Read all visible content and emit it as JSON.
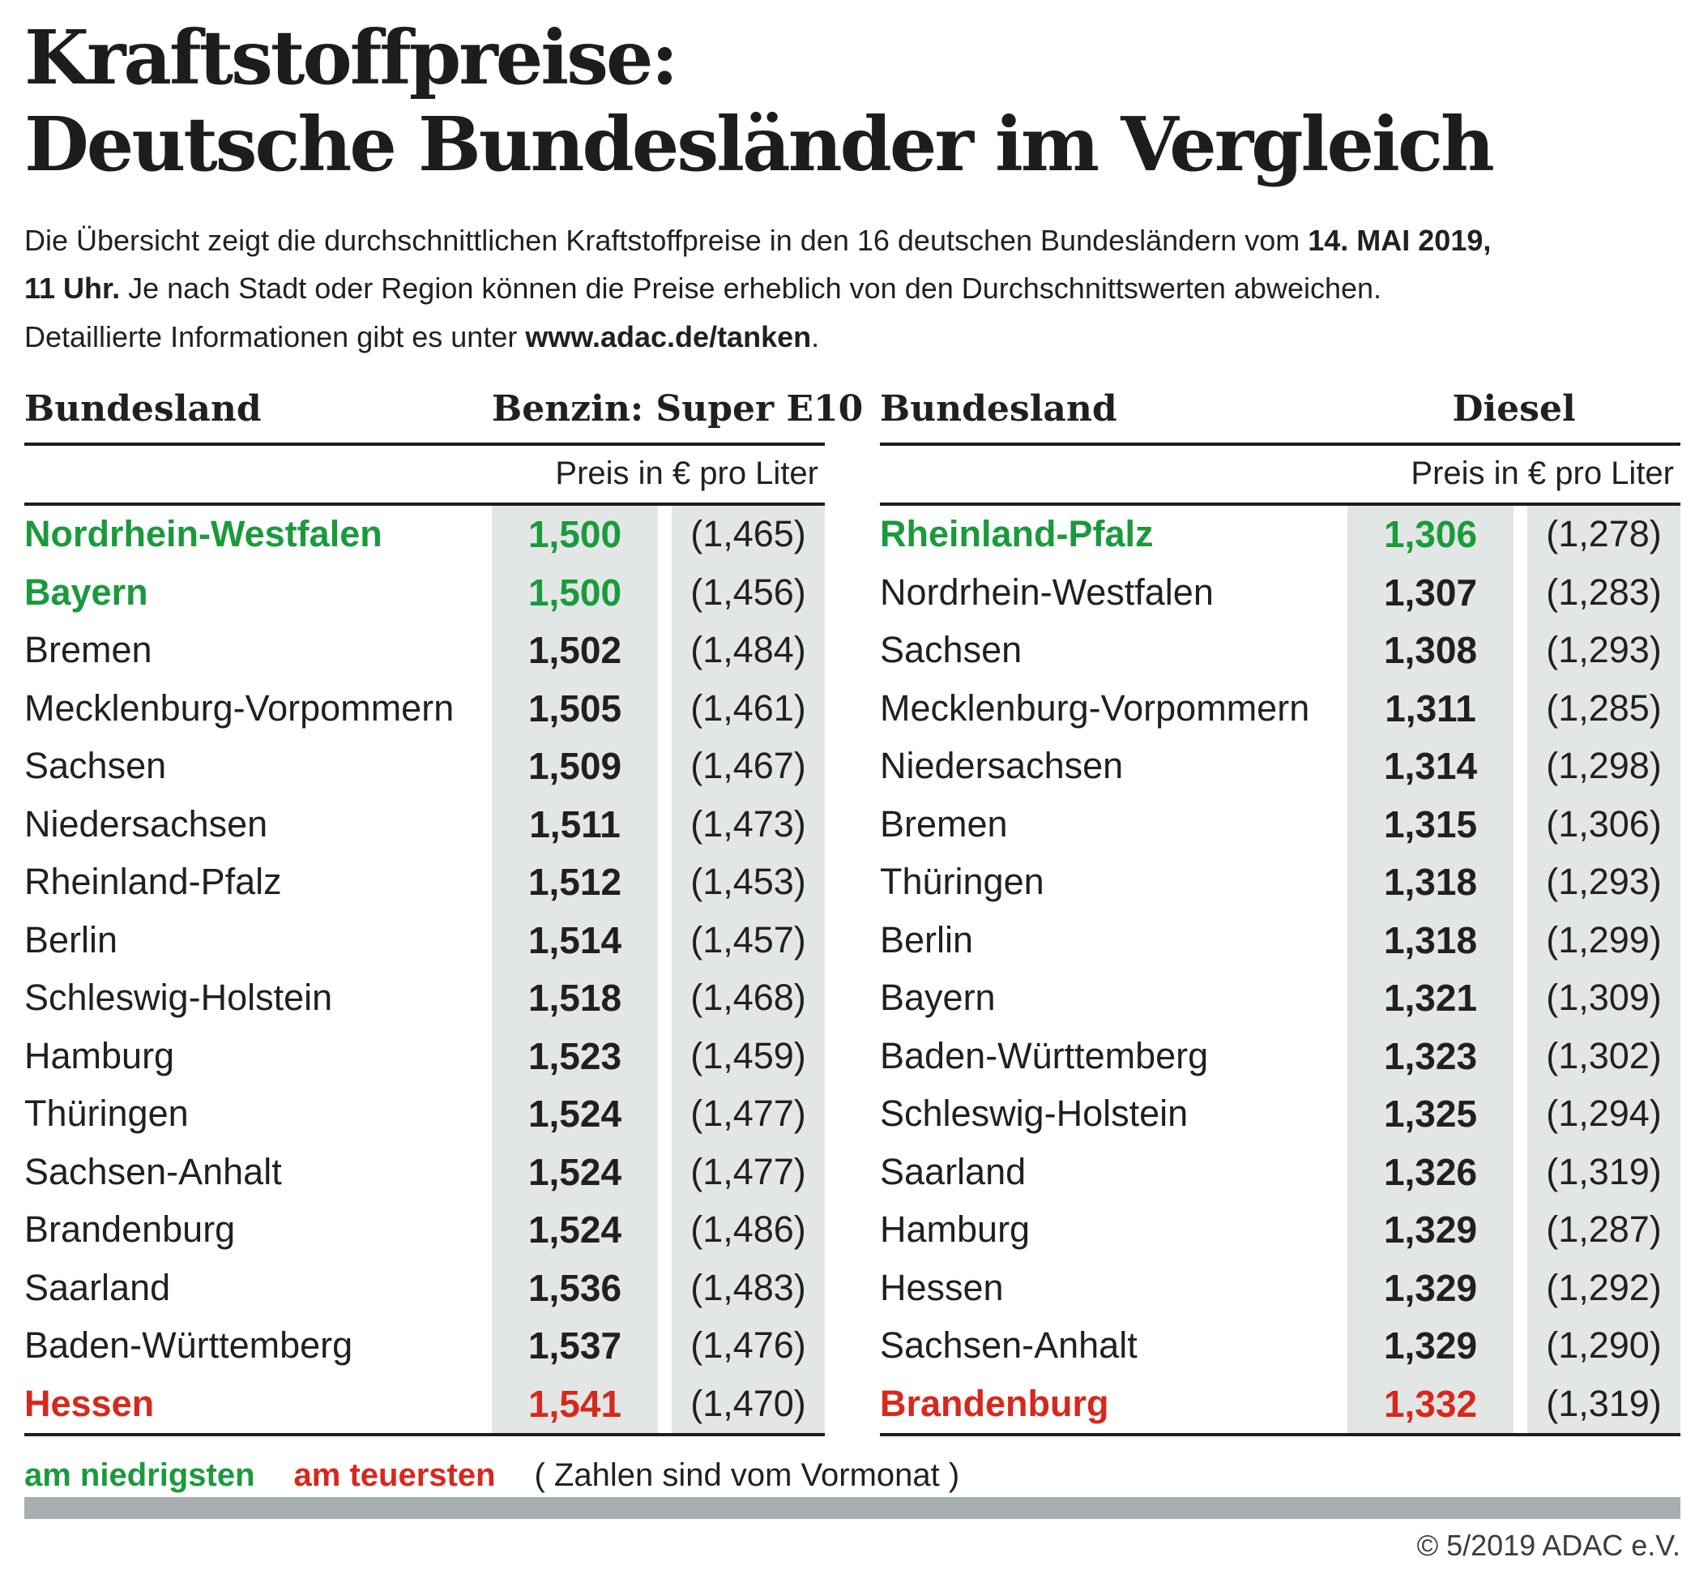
{
  "title": {
    "line1": "Kraftstoffpreise:",
    "line2": "Deutsche Bundesländer im Vergleich"
  },
  "intro": {
    "l1a": "Die Übersicht zeigt die durchschnittlichen Kraftstoffpreise in den 16 deutschen Bundesländern vom ",
    "l1b": "14. MAI 2019,",
    "l2a": "11 Uhr.",
    "l2b": " Je nach Stadt oder Region können die Preise erheblich von den Durchschnittswerten abweichen.",
    "l3a": "Detaillierte Informationen gibt es unter ",
    "l3b": "www.adac.de/tanken",
    "l3c": "."
  },
  "legend": {
    "lowest": "am niedrigsten",
    "highest": "am teuersten",
    "note": "( Zahlen sind vom Vormonat )"
  },
  "copyright": "© 5/2019 ADAC e.V.",
  "colors": {
    "green": "#1a9a3d",
    "red": "#d7281c",
    "band": "#e2e6e5",
    "bar": "#a8adb0"
  },
  "chart_data": [
    {
      "type": "table",
      "title": "Benzin: Super E10",
      "unit": "Preis in € pro Liter",
      "as_of": "14. MAI 2019, 11 Uhr",
      "columns": [
        "Bundesland",
        "Preis in € pro Liter",
        "Vormonat"
      ],
      "rows": [
        {
          "name": "Nordrhein-Westfalen",
          "value": "1,500",
          "prev": "(1,465)",
          "highlight": "lowest"
        },
        {
          "name": "Bayern",
          "value": "1,500",
          "prev": "(1,456)",
          "highlight": "lowest"
        },
        {
          "name": "Bremen",
          "value": "1,502",
          "prev": "(1,484)",
          "highlight": ""
        },
        {
          "name": "Mecklenburg-Vorpommern",
          "value": "1,505",
          "prev": "(1,461)",
          "highlight": ""
        },
        {
          "name": "Sachsen",
          "value": "1,509",
          "prev": "(1,467)",
          "highlight": ""
        },
        {
          "name": "Niedersachsen",
          "value": "1,511",
          "prev": "(1,473)",
          "highlight": ""
        },
        {
          "name": "Rheinland-Pfalz",
          "value": "1,512",
          "prev": "(1,453)",
          "highlight": ""
        },
        {
          "name": "Berlin",
          "value": "1,514",
          "prev": "(1,457)",
          "highlight": ""
        },
        {
          "name": "Schleswig-Holstein",
          "value": "1,518",
          "prev": "(1,468)",
          "highlight": ""
        },
        {
          "name": "Hamburg",
          "value": "1,523",
          "prev": "(1,459)",
          "highlight": ""
        },
        {
          "name": "Thüringen",
          "value": "1,524",
          "prev": "(1,477)",
          "highlight": ""
        },
        {
          "name": "Sachsen-Anhalt",
          "value": "1,524",
          "prev": "(1,477)",
          "highlight": ""
        },
        {
          "name": "Brandenburg",
          "value": "1,524",
          "prev": "(1,486)",
          "highlight": ""
        },
        {
          "name": "Saarland",
          "value": "1,536",
          "prev": "(1,483)",
          "highlight": ""
        },
        {
          "name": "Baden-Württemberg",
          "value": "1,537",
          "prev": "(1,476)",
          "highlight": ""
        },
        {
          "name": "Hessen",
          "value": "1,541",
          "prev": "(1,470)",
          "highlight": "highest"
        }
      ]
    },
    {
      "type": "table",
      "title": "Diesel",
      "unit": "Preis in € pro Liter",
      "as_of": "14. MAI 2019, 11 Uhr",
      "columns": [
        "Bundesland",
        "Preis in € pro Liter",
        "Vormonat"
      ],
      "rows": [
        {
          "name": "Rheinland-Pfalz",
          "value": "1,306",
          "prev": "(1,278)",
          "highlight": "lowest"
        },
        {
          "name": "Nordrhein-Westfalen",
          "value": "1,307",
          "prev": "(1,283)",
          "highlight": ""
        },
        {
          "name": "Sachsen",
          "value": "1,308",
          "prev": "(1,293)",
          "highlight": ""
        },
        {
          "name": "Mecklenburg-Vorpommern",
          "value": "1,311",
          "prev": "(1,285)",
          "highlight": ""
        },
        {
          "name": "Niedersachsen",
          "value": "1,314",
          "prev": "(1,298)",
          "highlight": ""
        },
        {
          "name": "Bremen",
          "value": "1,315",
          "prev": "(1,306)",
          "highlight": ""
        },
        {
          "name": "Thüringen",
          "value": "1,318",
          "prev": "(1,293)",
          "highlight": ""
        },
        {
          "name": "Berlin",
          "value": "1,318",
          "prev": "(1,299)",
          "highlight": ""
        },
        {
          "name": "Bayern",
          "value": "1,321",
          "prev": "(1,309)",
          "highlight": ""
        },
        {
          "name": "Baden-Württemberg",
          "value": "1,323",
          "prev": "(1,302)",
          "highlight": ""
        },
        {
          "name": "Schleswig-Holstein",
          "value": "1,325",
          "prev": "(1,294)",
          "highlight": ""
        },
        {
          "name": "Saarland",
          "value": "1,326",
          "prev": "(1,319)",
          "highlight": ""
        },
        {
          "name": "Hamburg",
          "value": "1,329",
          "prev": "(1,287)",
          "highlight": ""
        },
        {
          "name": "Hessen",
          "value": "1,329",
          "prev": "(1,292)",
          "highlight": ""
        },
        {
          "name": "Sachsen-Anhalt",
          "value": "1,329",
          "prev": "(1,290)",
          "highlight": ""
        },
        {
          "name": "Brandenburg",
          "value": "1,332",
          "prev": "(1,319)",
          "highlight": "highest"
        }
      ]
    }
  ]
}
